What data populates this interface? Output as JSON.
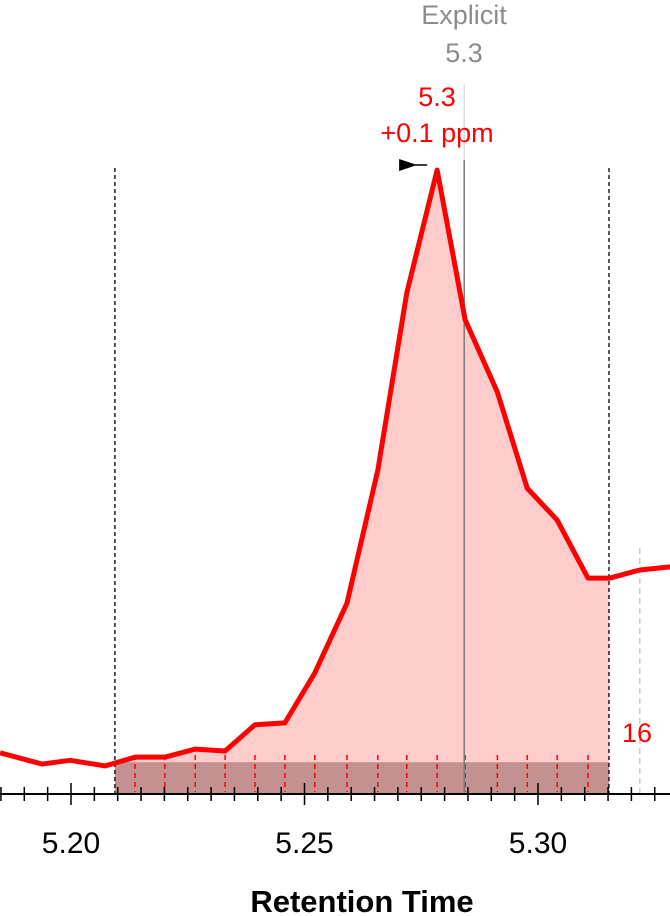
{
  "chart_data": {
    "type": "area",
    "xlabel": "Retention Time",
    "ylabel": "",
    "xlim": [
      5.1848,
      5.3283
    ],
    "ylim": [
      0,
      100
    ],
    "x_ticks": [
      "5.20",
      "5.25",
      "5.30"
    ],
    "x_tick_values": [
      5.2,
      5.25,
      5.3
    ],
    "minor_tick_step": 0.005,
    "grid": false,
    "series": [
      {
        "color": "#ff0000",
        "x": [
          5.1848,
          5.1938,
          5.1998,
          5.2073,
          5.2137,
          5.2201,
          5.2266,
          5.233,
          5.2394,
          5.2458,
          5.2522,
          5.2591,
          5.2657,
          5.2719,
          5.2784,
          5.2844,
          5.2913,
          5.2977,
          5.3041,
          5.3107,
          5.3154,
          5.3218,
          5.3283
        ],
        "y": [
          6.6,
          4.8,
          5.4,
          4.5,
          5.9,
          5.9,
          7.2,
          6.9,
          11.1,
          11.4,
          19.4,
          30.6,
          51.9,
          80.3,
          100,
          76,
          64.4,
          49,
          43.9,
          34.6,
          34.6,
          35.9,
          36.4
        ]
      }
    ],
    "peak_boundaries": [
      5.2094,
      5.3152
    ],
    "baseline_level": 5.1,
    "fill_color": "#ffcccc",
    "background_fill_color": "#c49191",
    "explicit_line": {
      "x": 5.2842,
      "label": "Explicit",
      "value": "5.3",
      "color": "#8c8c8c"
    },
    "peak_annotation": {
      "x": 5.2784,
      "rt": "5.3",
      "mass_error": "+0.1 ppm",
      "color": "#ff0000"
    },
    "id_line": {
      "x": 5.3218,
      "label": "16"
    }
  }
}
